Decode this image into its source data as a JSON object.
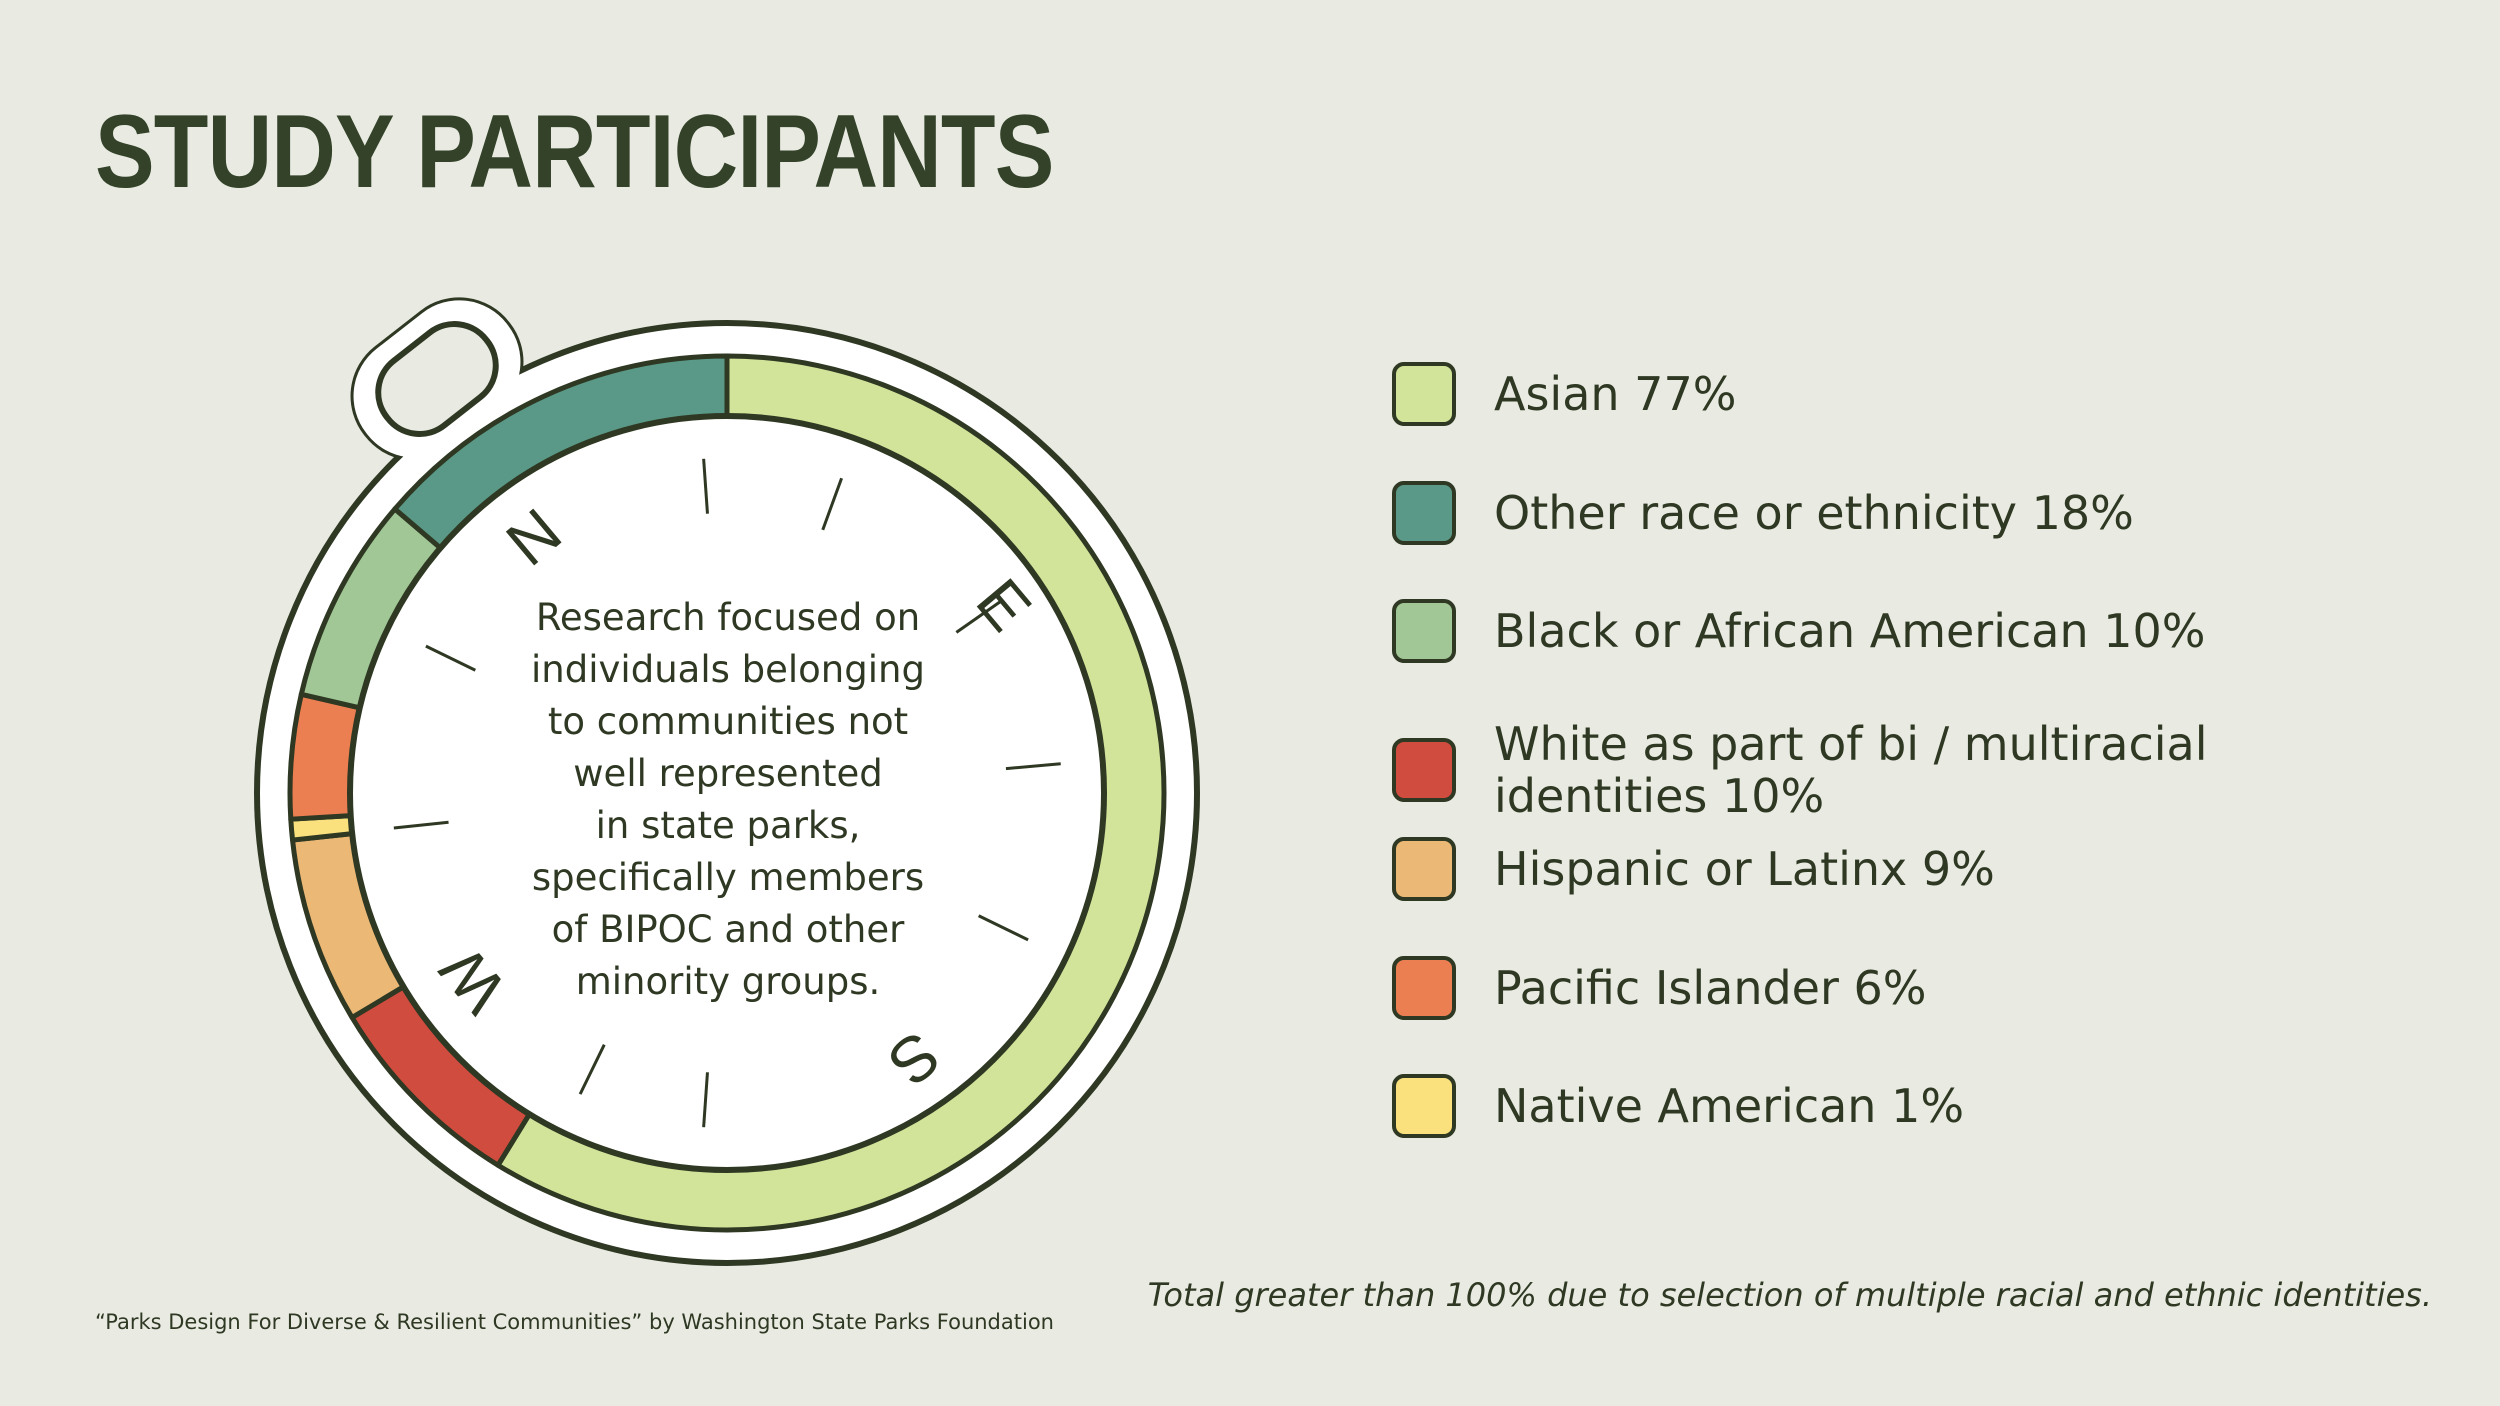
{
  "title": "STUDY PARTICIPANTS",
  "center_text": "Research focused on\nindividuals belonging\nto communities not\nwell represented\nin state parks,\nspecifically members\nof BIPOC and other\nminority groups.",
  "compass_letters": [
    "N",
    "E",
    "S",
    "W"
  ],
  "footnote": "Total greater than 100% due to selection of multiple racial and ethnic identities.",
  "credit": "“Parks Design For Diverse & Resilient Communities” by Washington State Parks Foundation",
  "chart_data": {
    "type": "pie",
    "title": "STUDY PARTICIPANTS",
    "series": [
      {
        "label": "Asian 77%",
        "value": 77,
        "color": "#d1e49a"
      },
      {
        "label": "Other race or ethnicity 18%",
        "value": 18,
        "color": "#5a9987"
      },
      {
        "label": "Black or African American 10%",
        "value": 10,
        "color": "#a0c795"
      },
      {
        "label": "White as part of bi / multiracial identities 10%",
        "value": 10,
        "color": "#cf4c3f"
      },
      {
        "label": "Hispanic or Latinx 9%",
        "value": 9,
        "color": "#ecb876"
      },
      {
        "label": "Pacific Islander 6%",
        "value": 6,
        "color": "#eb7f51"
      },
      {
        "label": "Native American 1%",
        "value": 1,
        "color": "#fae17d"
      }
    ],
    "ring_order": [
      "Asian 77%",
      "White as part of bi / multiracial identities 10%",
      "Hispanic or Latinx 9%",
      "Native American 1%",
      "Pacific Islander 6%",
      "Black or African American 10%",
      "Other race or ethnicity 18%"
    ]
  }
}
